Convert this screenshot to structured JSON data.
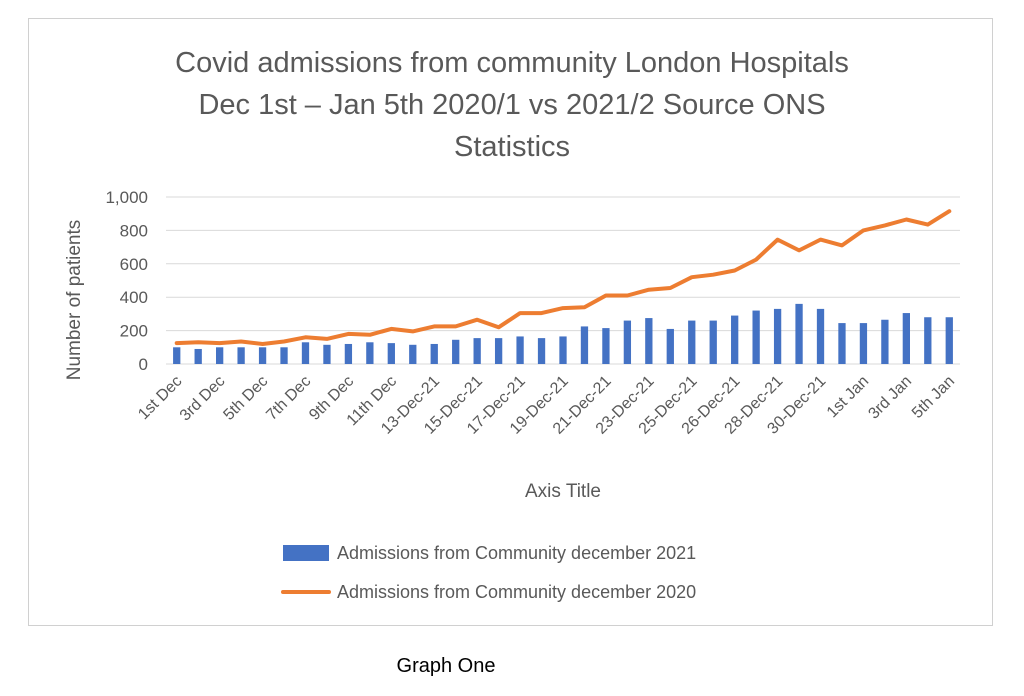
{
  "chart_data": {
    "type": "bar+line",
    "title_lines": [
      "Covid admissions from community London Hospitals",
      "Dec 1st – Jan 5th  2020/1 vs 2021/2 Source ONS",
      "Statistics"
    ],
    "xlabel": "Axis Title",
    "ylabel": "Number of patients",
    "ylim": [
      0,
      1000
    ],
    "yticks": [
      0,
      200,
      400,
      600,
      800,
      1000
    ],
    "ytick_labels": [
      "0",
      "200",
      "400",
      "600",
      "800",
      "1,000"
    ],
    "n_categories": 37,
    "xtick_labels": [
      "1st Dec",
      "3rd Dec",
      "5th Dec",
      "7th Dec",
      "9th Dec",
      "11th Dec",
      "13-Dec-21",
      "15-Dec-21",
      "17-Dec-21",
      "19-Dec-21",
      "21-Dec-21",
      "23-Dec-21",
      "25-Dec-21",
      "26-Dec-21",
      "28-Dec-21",
      "30-Dec-21",
      "1st Jan",
      "3rd Jan",
      "5th Jan"
    ],
    "xtick_positions": [
      0,
      2,
      4,
      6,
      8,
      10,
      12,
      14,
      16,
      18,
      20,
      22,
      24,
      26,
      28,
      30,
      32,
      34,
      36
    ],
    "series": [
      {
        "name": "Admissions from Community december 2021",
        "type": "bar",
        "color": "#4472c4",
        "values": [
          100,
          90,
          100,
          100,
          100,
          100,
          130,
          115,
          120,
          130,
          125,
          115,
          120,
          145,
          155,
          155,
          165,
          155,
          165,
          225,
          215,
          260,
          275,
          210,
          260,
          260,
          290,
          320,
          330,
          360,
          330,
          245,
          245,
          265,
          305,
          280,
          280
        ]
      },
      {
        "name": "Admissions from Community december 2020",
        "type": "line",
        "color": "#ed7d31",
        "values": [
          125,
          130,
          125,
          135,
          120,
          135,
          160,
          150,
          180,
          175,
          210,
          195,
          225,
          225,
          265,
          220,
          305,
          305,
          335,
          340,
          410,
          410,
          445,
          455,
          520,
          535,
          560,
          625,
          745,
          680,
          745,
          710,
          800,
          830,
          865,
          835,
          915
        ]
      }
    ]
  },
  "caption": "Graph One"
}
